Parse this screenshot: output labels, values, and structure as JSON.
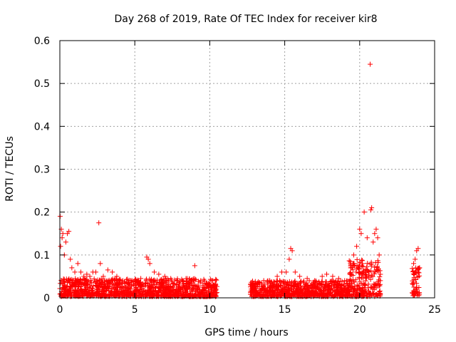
{
  "chart_data": {
    "type": "scatter",
    "title": "Day 268 of 2019, Rate Of TEC Index for receiver kir8",
    "xlabel": "GPS time / hours",
    "ylabel": "ROTI / TECUs",
    "xlim": [
      0,
      25
    ],
    "ylim": [
      0,
      0.6
    ],
    "x_ticks": [
      0,
      5,
      10,
      15,
      20,
      25
    ],
    "x_tick_labels": [
      "0",
      "5",
      "10",
      "15",
      "20",
      "25"
    ],
    "y_ticks": [
      0,
      0.1,
      0.2,
      0.3,
      0.4,
      0.5,
      0.6
    ],
    "y_tick_labels": [
      "0",
      "0.1",
      "0.2",
      "0.3",
      "0.4",
      "0.5",
      "0.6"
    ],
    "grid": true,
    "marker": "+",
    "color": "#ff0000",
    "series": [
      {
        "name": "ROTI",
        "points": [
          [
            0.02,
            0.19
          ],
          [
            0.05,
            0.12
          ],
          [
            0.1,
            0.16
          ],
          [
            0.15,
            0.14
          ],
          [
            0.2,
            0.15
          ],
          [
            0.3,
            0.1
          ],
          [
            0.4,
            0.13
          ],
          [
            0.5,
            0.15
          ],
          [
            0.6,
            0.155
          ],
          [
            0.7,
            0.09
          ],
          [
            0.8,
            0.07
          ],
          [
            1.0,
            0.06
          ],
          [
            1.2,
            0.08
          ],
          [
            1.4,
            0.06
          ],
          [
            1.6,
            0.05
          ],
          [
            1.8,
            0.055
          ],
          [
            2.0,
            0.05
          ],
          [
            2.2,
            0.06
          ],
          [
            2.4,
            0.06
          ],
          [
            2.6,
            0.175
          ],
          [
            2.7,
            0.08
          ],
          [
            2.9,
            0.05
          ],
          [
            3.2,
            0.065
          ],
          [
            3.5,
            0.06
          ],
          [
            3.8,
            0.05
          ],
          [
            4.2,
            0.04
          ],
          [
            4.6,
            0.035
          ],
          [
            5.0,
            0.04
          ],
          [
            5.4,
            0.045
          ],
          [
            5.8,
            0.095
          ],
          [
            5.9,
            0.09
          ],
          [
            6.0,
            0.08
          ],
          [
            6.3,
            0.06
          ],
          [
            6.6,
            0.055
          ],
          [
            7.0,
            0.05
          ],
          [
            7.4,
            0.045
          ],
          [
            7.8,
            0.04
          ],
          [
            8.2,
            0.04
          ],
          [
            8.6,
            0.035
          ],
          [
            9.0,
            0.075
          ],
          [
            9.4,
            0.04
          ],
          [
            9.8,
            0.035
          ],
          [
            10.2,
            0.04
          ],
          [
            10.4,
            0.03
          ],
          [
            12.8,
            0.03
          ],
          [
            13.2,
            0.035
          ],
          [
            13.6,
            0.04
          ],
          [
            14.0,
            0.04
          ],
          [
            14.5,
            0.05
          ],
          [
            14.8,
            0.06
          ],
          [
            15.1,
            0.06
          ],
          [
            15.3,
            0.09
          ],
          [
            15.4,
            0.115
          ],
          [
            15.5,
            0.11
          ],
          [
            15.7,
            0.06
          ],
          [
            16.0,
            0.05
          ],
          [
            16.5,
            0.045
          ],
          [
            17.0,
            0.04
          ],
          [
            17.5,
            0.05
          ],
          [
            17.8,
            0.055
          ],
          [
            18.2,
            0.05
          ],
          [
            18.6,
            0.045
          ],
          [
            19.0,
            0.04
          ],
          [
            19.4,
            0.07
          ],
          [
            19.6,
            0.1
          ],
          [
            19.8,
            0.12
          ],
          [
            20.0,
            0.16
          ],
          [
            20.1,
            0.15
          ],
          [
            20.3,
            0.2
          ],
          [
            20.5,
            0.14
          ],
          [
            20.7,
            0.545
          ],
          [
            20.75,
            0.205
          ],
          [
            20.8,
            0.21
          ],
          [
            20.9,
            0.13
          ],
          [
            21.0,
            0.15
          ],
          [
            21.1,
            0.16
          ],
          [
            21.2,
            0.14
          ],
          [
            21.3,
            0.1
          ],
          [
            23.6,
            0.08
          ],
          [
            23.7,
            0.09
          ],
          [
            23.8,
            0.11
          ],
          [
            23.9,
            0.115
          ],
          [
            24.0,
            0.07
          ]
        ],
        "bands": [
          {
            "x_from": 0.0,
            "x_to": 10.5,
            "y_min": 0.003,
            "y_max": 0.045
          },
          {
            "x_from": 12.7,
            "x_to": 19.3,
            "y_min": 0.003,
            "y_max": 0.04
          },
          {
            "x_from": 19.3,
            "x_to": 21.4,
            "y_min": 0.003,
            "y_max": 0.09
          },
          {
            "x_from": 23.5,
            "x_to": 24.0,
            "y_min": 0.005,
            "y_max": 0.07
          }
        ]
      }
    ]
  }
}
